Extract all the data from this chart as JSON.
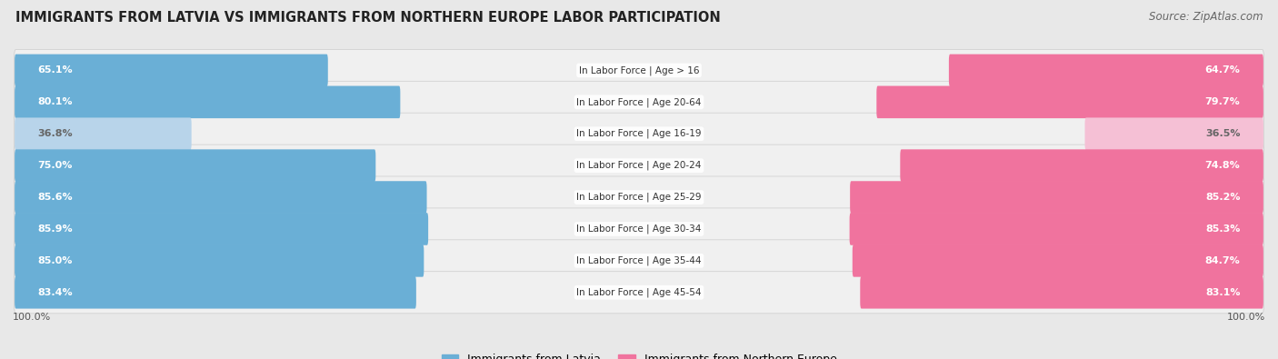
{
  "title": "IMMIGRANTS FROM LATVIA VS IMMIGRANTS FROM NORTHERN EUROPE LABOR PARTICIPATION",
  "source": "Source: ZipAtlas.com",
  "categories": [
    "In Labor Force | Age > 16",
    "In Labor Force | Age 20-64",
    "In Labor Force | Age 16-19",
    "In Labor Force | Age 20-24",
    "In Labor Force | Age 25-29",
    "In Labor Force | Age 30-34",
    "In Labor Force | Age 35-44",
    "In Labor Force | Age 45-54"
  ],
  "latvia_values": [
    65.1,
    80.1,
    36.8,
    75.0,
    85.6,
    85.9,
    85.0,
    83.4
  ],
  "northern_values": [
    64.7,
    79.7,
    36.5,
    74.8,
    85.2,
    85.3,
    84.7,
    83.1
  ],
  "latvia_color": "#6aafd6",
  "northern_color": "#f0739e",
  "latvia_color_light": "#b8d4ea",
  "northern_color_light": "#f5c0d5",
  "bg_color": "#e8e8e8",
  "row_bg_color": "#f0f0f0",
  "max_val": 100.0,
  "legend_latvia": "Immigrants from Latvia",
  "legend_northern": "Immigrants from Northern Europe"
}
